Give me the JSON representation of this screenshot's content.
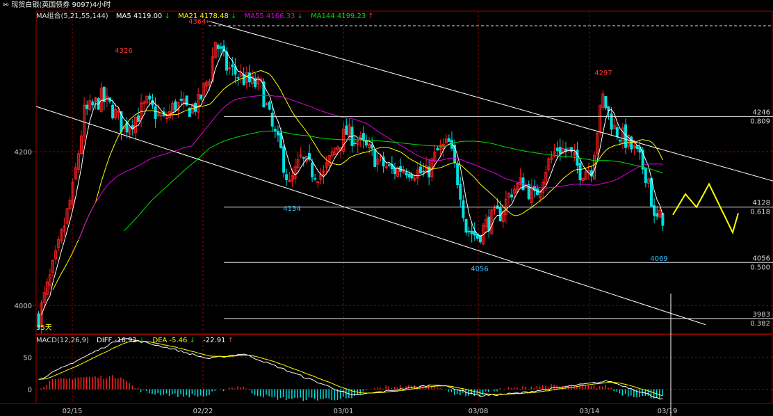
{
  "header": {
    "link_icon": "link-icon",
    "title": "现货白银(英国债券 9097)",
    "period": "4小时"
  },
  "ma_legend": {
    "name": "MA组合(5,21,55,144)",
    "ma5": {
      "label": "MA5",
      "value": "4119.00",
      "dir": "↓",
      "color": "#ffffff"
    },
    "ma21": {
      "label": "MA21",
      "value": "4178.48",
      "dir": "↓",
      "color": "#ffff00"
    },
    "ma55": {
      "label": "MA55",
      "value": "4166.33",
      "dir": "↓",
      "color": "#e000e0"
    },
    "ma144": {
      "label": "MA144",
      "value": "4199.23",
      "dir": "↑",
      "color": "#00e000"
    }
  },
  "macd_legend": {
    "name": "MACD(12,26,9)",
    "diff": {
      "label": "DIFF",
      "value": "-16.92",
      "dir": "↓"
    },
    "dea": {
      "label": "DEA",
      "value": "-5.46",
      "dir": "↓"
    },
    "macd": {
      "value": "-22.91",
      "dir": "↑"
    }
  },
  "chart_data": {
    "type": "candlestick",
    "price_axis": {
      "ticks": [
        4000,
        4200
      ],
      "range": [
        3963,
        4383
      ]
    },
    "macd_axis": {
      "ticks": [
        0,
        50
      ],
      "range": [
        -22,
        85
      ]
    },
    "date_labels": [
      "02/15",
      "02/22",
      "03/01",
      "03/08",
      "03/14",
      "03/19"
    ],
    "price_annotations": [
      {
        "text": "4364",
        "value": 4364,
        "color": "#ff3030",
        "arrow": "←"
      },
      {
        "text": "4326",
        "value": 4326,
        "color": "#ff3030"
      },
      {
        "text": "4297",
        "value": 4297,
        "color": "#ff3030"
      },
      {
        "text": "4134",
        "value": 4134,
        "color": "#30c0ff"
      },
      {
        "text": "4056",
        "value": 4056,
        "color": "#30c0ff"
      },
      {
        "text": "4069",
        "value": 4069,
        "color": "#30c0ff"
      }
    ],
    "fib_levels": [
      {
        "price": "4246",
        "ratio": "0.809",
        "value": 4246
      },
      {
        "price": "4128",
        "ratio": "0.618",
        "value": 4128
      },
      {
        "price": "4056",
        "ratio": "0.500",
        "value": 4056
      },
      {
        "price": "3983",
        "ratio": "0.382",
        "value": 3983
      }
    ],
    "count_label": "35天",
    "series_colors": {
      "up_candle": "#ff2020",
      "down_candle": "#00e0e0",
      "ma5": "#ffffff",
      "ma21": "#ffff00",
      "ma55": "#e000e0",
      "ma144": "#00e000",
      "forecast": "#ffff00",
      "trendline": "#ffffff"
    },
    "grid": true
  }
}
